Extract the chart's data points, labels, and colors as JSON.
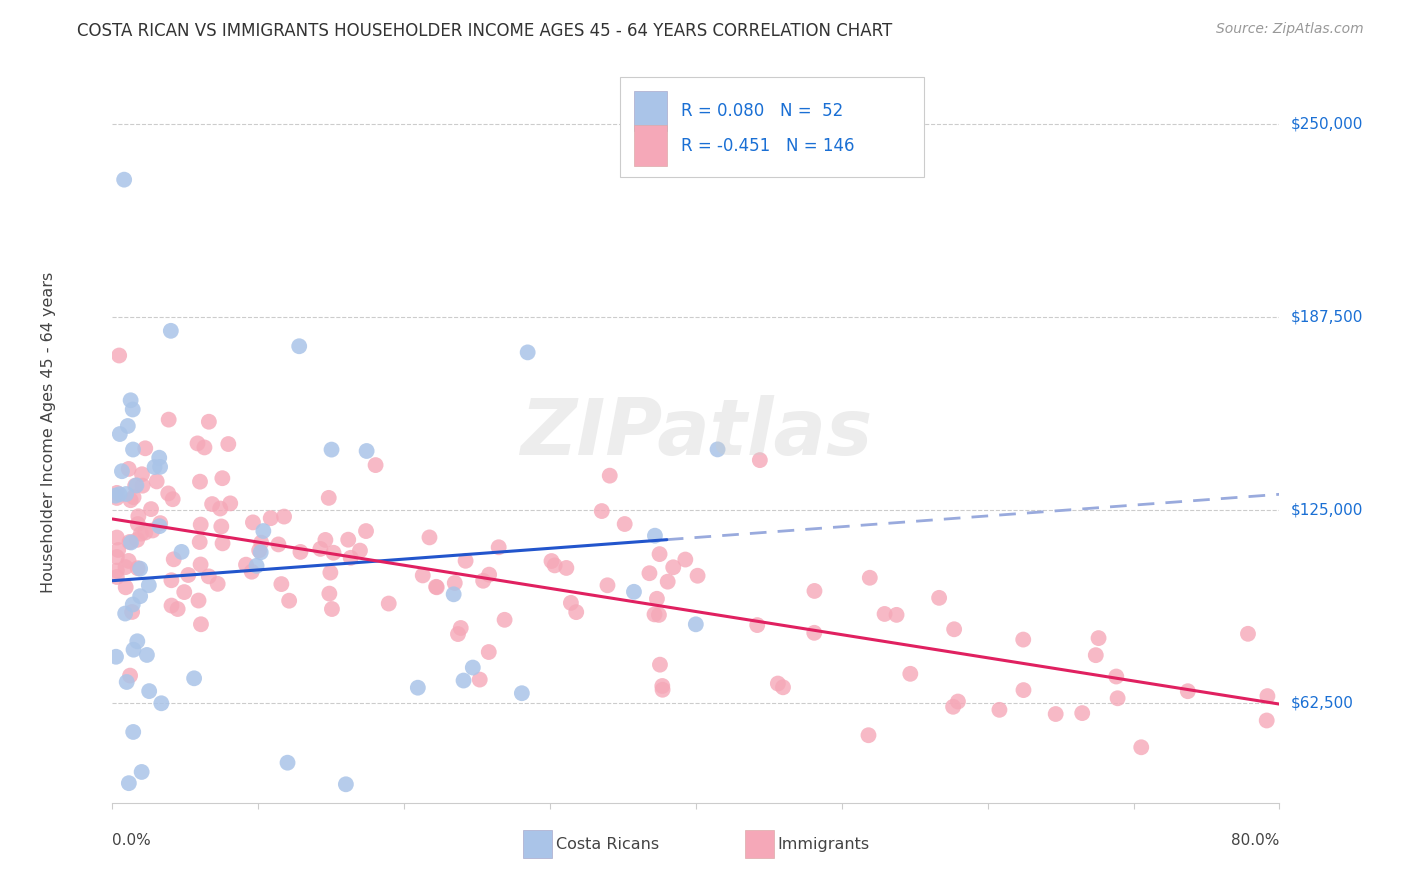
{
  "title": "COSTA RICAN VS IMMIGRANTS HOUSEHOLDER INCOME AGES 45 - 64 YEARS CORRELATION CHART",
  "source": "Source: ZipAtlas.com",
  "ylabel": "Householder Income Ages 45 - 64 years",
  "y_tick_labels": [
    "$62,500",
    "$125,000",
    "$187,500",
    "$250,000"
  ],
  "y_tick_values": [
    62500,
    125000,
    187500,
    250000
  ],
  "blue_scatter_color": "#aac4e8",
  "pink_scatter_color": "#f5a8b8",
  "blue_line_color": "#2255cc",
  "pink_line_color": "#e02060",
  "blue_dashed_color": "#99aadd",
  "legend_text_color": "#1a6fd4",
  "ytick_color": "#1a6fd4",
  "grid_color": "#cccccc",
  "watermark": "ZIPatlas",
  "xmin": 0.0,
  "xmax": 0.8,
  "ymin": 30000,
  "ymax": 270000,
  "blue_R": 0.08,
  "blue_N": 52,
  "pink_R": -0.451,
  "pink_N": 146,
  "blue_intercept": 105000,
  "blue_slope": 18000,
  "pink_intercept": 122000,
  "pink_slope": -75000
}
